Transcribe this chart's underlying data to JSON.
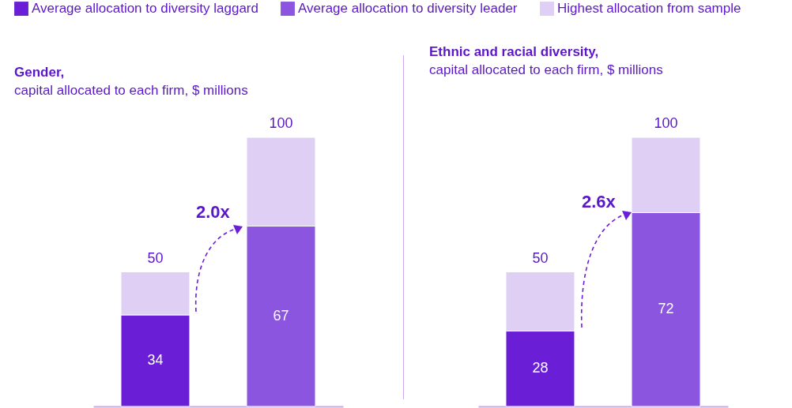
{
  "chart_data": [
    {
      "type": "bar",
      "title": "Gender,",
      "subtitle": "capital allocated to each firm, $ millions",
      "categories": [
        null,
        null
      ],
      "stacked": true,
      "legend": "top",
      "tick_labels": false,
      "annotations": [
        "2.0x"
      ],
      "totals": [
        "50",
        "100"
      ],
      "series": [
        {
          "name": "Average allocation to diversity laggard",
          "color": "#6a1fd6",
          "values": [
            34,
            null
          ],
          "value_labels": [
            "34",
            null
          ]
        },
        {
          "name": "Average allocation to diversity leader",
          "color": "#8b55e0",
          "values": [
            null,
            67
          ],
          "value_labels": [
            null,
            "67"
          ]
        },
        {
          "name": "Highest allocation from sample",
          "color": "#dfcff5",
          "values": [
            16,
            33
          ]
        }
      ]
    },
    {
      "type": "bar",
      "title": "Ethnic and racial diversity,",
      "subtitle": "capital allocated to each firm, $ millions",
      "categories": [
        null,
        null
      ],
      "stacked": true,
      "tick_labels": false,
      "annotations": [
        "2.6x"
      ],
      "totals": [
        "50",
        "100"
      ],
      "series": [
        {
          "color": "#6a1fd6",
          "values": [
            28,
            null
          ],
          "value_labels": [
            "28",
            null
          ]
        },
        {
          "color": "#8b55e0",
          "values": [
            null,
            72
          ],
          "value_labels": [
            null,
            "72"
          ]
        },
        {
          "color": "#dfcff5",
          "values": [
            22,
            28
          ]
        }
      ]
    }
  ]
}
